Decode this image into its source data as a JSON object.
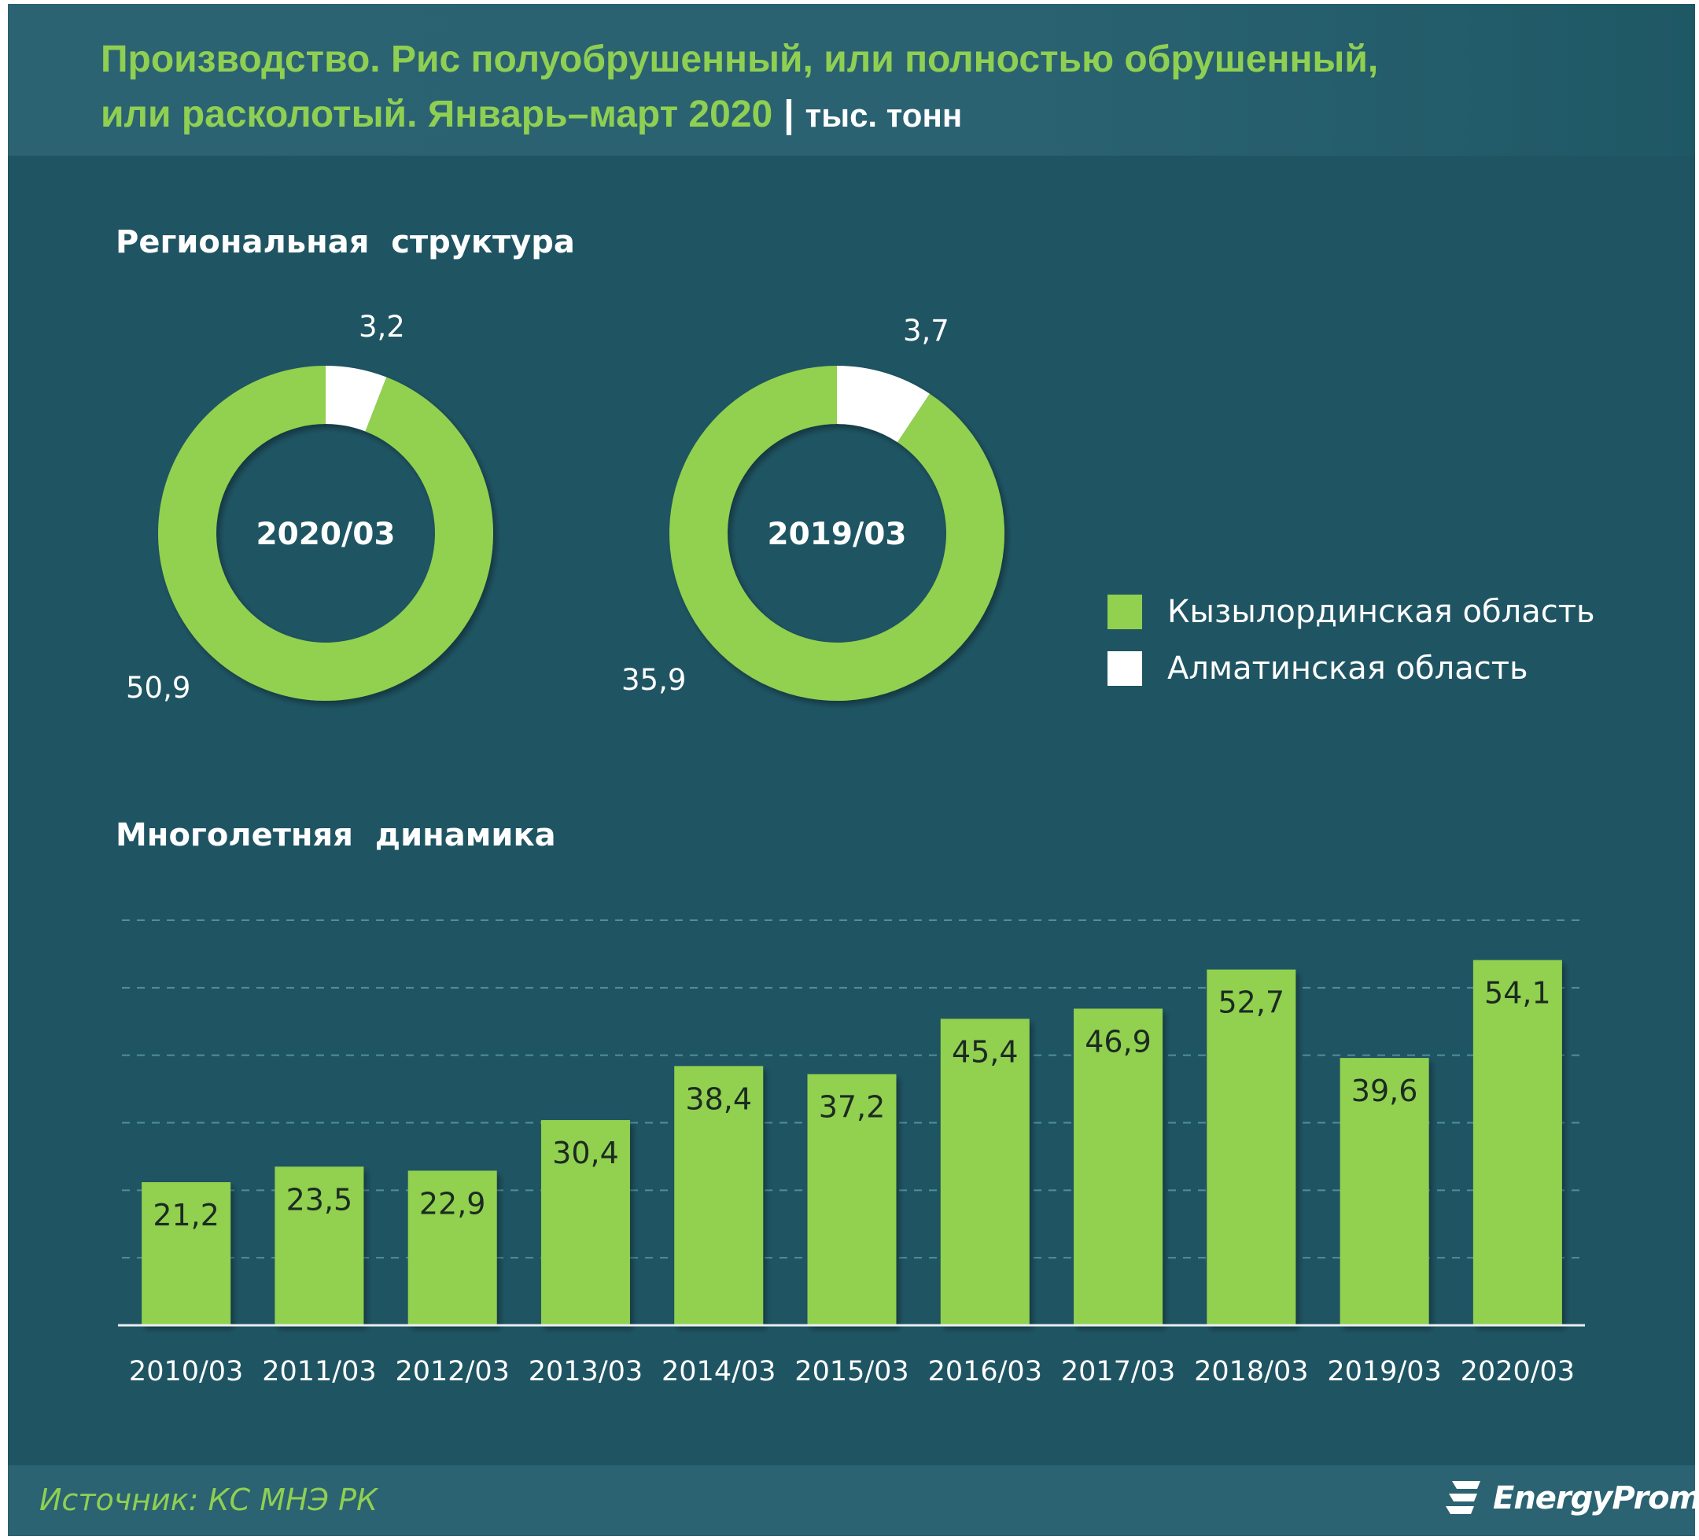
{
  "header": {
    "title_line1": "Производство. Рис полуобрушенный, или полностью обрушенный,",
    "title_line2": "или расколотый. Январь–март 2020",
    "separator": "|",
    "unit": "тыс. тонн"
  },
  "sections": {
    "regional": "Региональная  структура",
    "dynamics": "Многолетняя  динамика"
  },
  "legend": [
    {
      "label": "Кызылординская область",
      "color": "#92d050"
    },
    {
      "label": "Алматинская область",
      "color": "#ffffff"
    }
  ],
  "chart_data": [
    {
      "type": "pie",
      "center_label": "2020/03",
      "slices": [
        {
          "name": "Кызылординская область",
          "value": 50.9,
          "label": "50,9",
          "color": "#92d050"
        },
        {
          "name": "Алматинская область",
          "value": 3.2,
          "label": "3,2",
          "color": "#ffffff"
        }
      ]
    },
    {
      "type": "pie",
      "center_label": "2019/03",
      "slices": [
        {
          "name": "Кызылординская область",
          "value": 35.9,
          "label": "35,9",
          "color": "#92d050"
        },
        {
          "name": "Алматинская область",
          "value": 3.7,
          "label": "3,7",
          "color": "#ffffff"
        }
      ]
    },
    {
      "type": "bar",
      "categories": [
        "2010/03",
        "2011/03",
        "2012/03",
        "2013/03",
        "2014/03",
        "2015/03",
        "2016/03",
        "2017/03",
        "2018/03",
        "2019/03",
        "2020/03"
      ],
      "values": [
        21.2,
        23.5,
        22.9,
        30.4,
        38.4,
        37.2,
        45.4,
        46.9,
        52.7,
        39.6,
        54.1
      ],
      "value_labels": [
        "21,2",
        "23,5",
        "22,9",
        "30,4",
        "38,4",
        "37,2",
        "45,4",
        "46,9",
        "52,7",
        "39,6",
        "54,1"
      ],
      "ylim": [
        0,
        60
      ],
      "grid": true,
      "bar_color": "#92d050"
    }
  ],
  "footer": {
    "source": "Источник: КС МНЭ РК",
    "brand": "EnergyProm"
  }
}
